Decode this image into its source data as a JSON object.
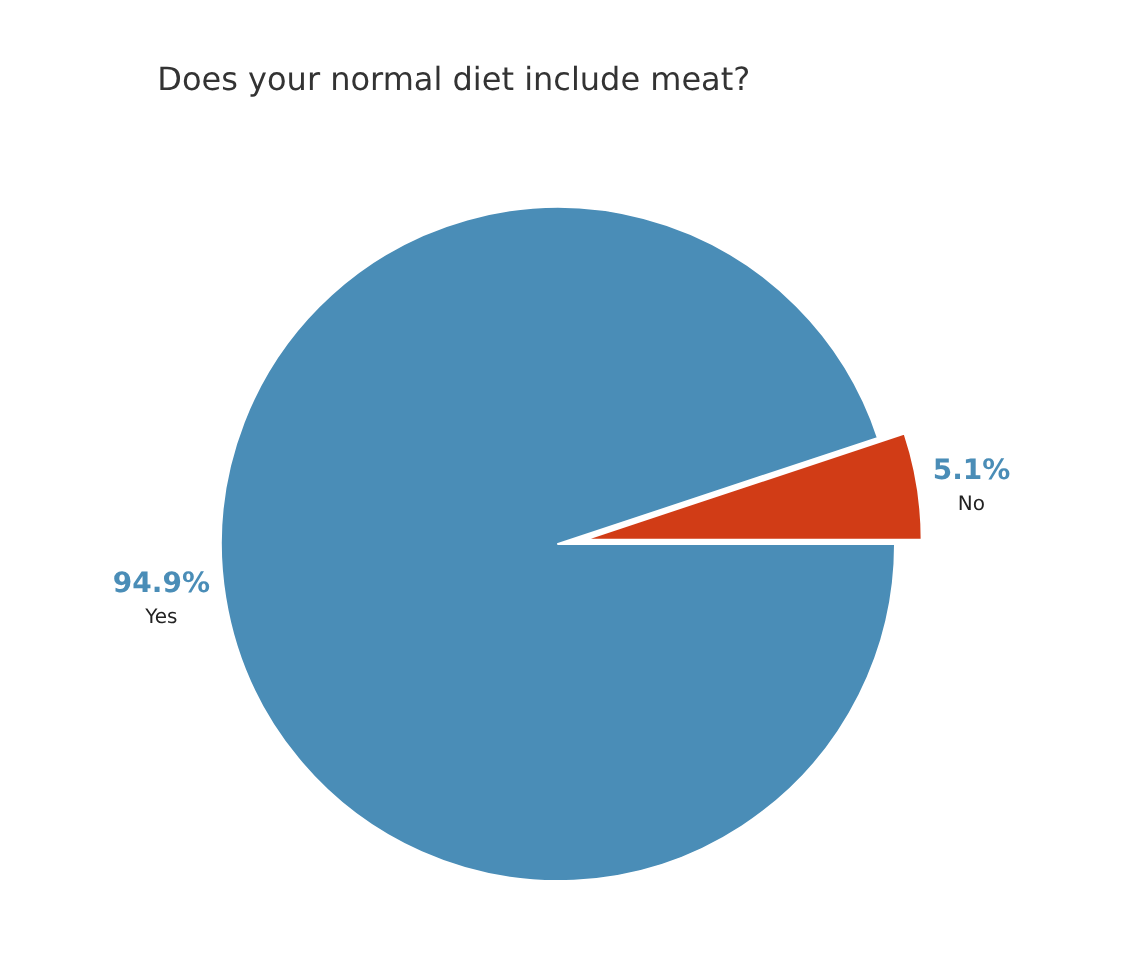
{
  "chart_data": {
    "type": "pie",
    "title": "Does your normal diet include meat?",
    "categories": [
      "Yes",
      "No"
    ],
    "values": [
      94.9,
      5.1
    ],
    "colors": [
      "#4a8db7",
      "#d13c16"
    ],
    "value_labels": [
      "94.9%",
      "5.1%"
    ]
  }
}
